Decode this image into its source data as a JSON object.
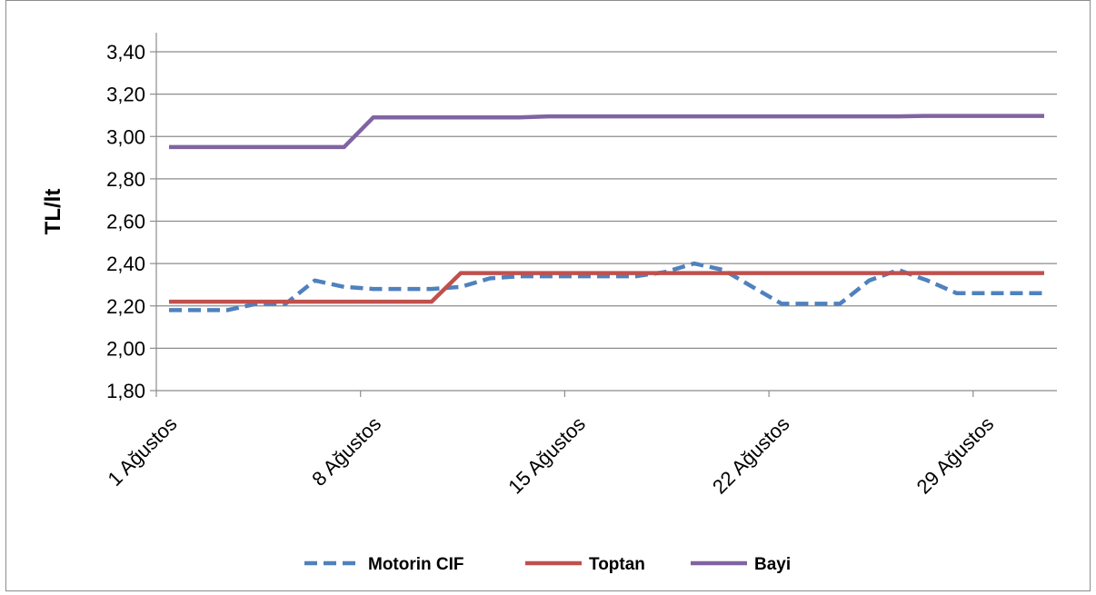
{
  "chart_data": {
    "type": "line",
    "title": "",
    "xlabel": "",
    "ylabel": "TL/lt",
    "ylim": [
      1.8,
      3.4
    ],
    "y_ticks": [
      "1,80",
      "2,00",
      "2,20",
      "2,40",
      "2,60",
      "2,80",
      "3,00",
      "3,20",
      "3,40"
    ],
    "x_ticks": [
      "1 Ağustos",
      "8 Ağustos",
      "15 Ağustos",
      "22 Ağustos",
      "29 Ağustos"
    ],
    "x_days": [
      1,
      2,
      3,
      4,
      5,
      6,
      7,
      8,
      9,
      10,
      11,
      12,
      13,
      14,
      15,
      16,
      17,
      18,
      19,
      20,
      21,
      22,
      23,
      24,
      25,
      26,
      27,
      28,
      29,
      30,
      31
    ],
    "grid": true,
    "legend_position": "bottom",
    "series": [
      {
        "name": "Motorin CIF",
        "color": "#4F81BD",
        "style": "dashed",
        "values": [
          2.18,
          2.18,
          2.18,
          2.21,
          2.21,
          2.32,
          2.29,
          2.28,
          2.28,
          2.28,
          2.29,
          2.33,
          2.34,
          2.34,
          2.34,
          2.34,
          2.34,
          2.36,
          2.4,
          2.37,
          2.29,
          2.21,
          2.21,
          2.21,
          2.32,
          2.37,
          2.32,
          2.26,
          2.26,
          2.26,
          2.26
        ]
      },
      {
        "name": "Toptan",
        "color": "#C0504D",
        "style": "solid",
        "values": [
          2.22,
          2.22,
          2.22,
          2.22,
          2.22,
          2.22,
          2.22,
          2.22,
          2.22,
          2.22,
          2.355,
          2.355,
          2.355,
          2.355,
          2.355,
          2.355,
          2.355,
          2.355,
          2.355,
          2.355,
          2.355,
          2.355,
          2.355,
          2.355,
          2.355,
          2.355,
          2.355,
          2.355,
          2.355,
          2.355,
          2.355
        ]
      },
      {
        "name": "Bayi",
        "color": "#8064A2",
        "style": "solid",
        "values": [
          2.95,
          2.95,
          2.95,
          2.95,
          2.95,
          2.95,
          2.95,
          3.09,
          3.09,
          3.09,
          3.09,
          3.09,
          3.09,
          3.095,
          3.095,
          3.095,
          3.095,
          3.095,
          3.095,
          3.095,
          3.095,
          3.095,
          3.095,
          3.095,
          3.095,
          3.095,
          3.097,
          3.097,
          3.097,
          3.097,
          3.097
        ]
      }
    ]
  }
}
